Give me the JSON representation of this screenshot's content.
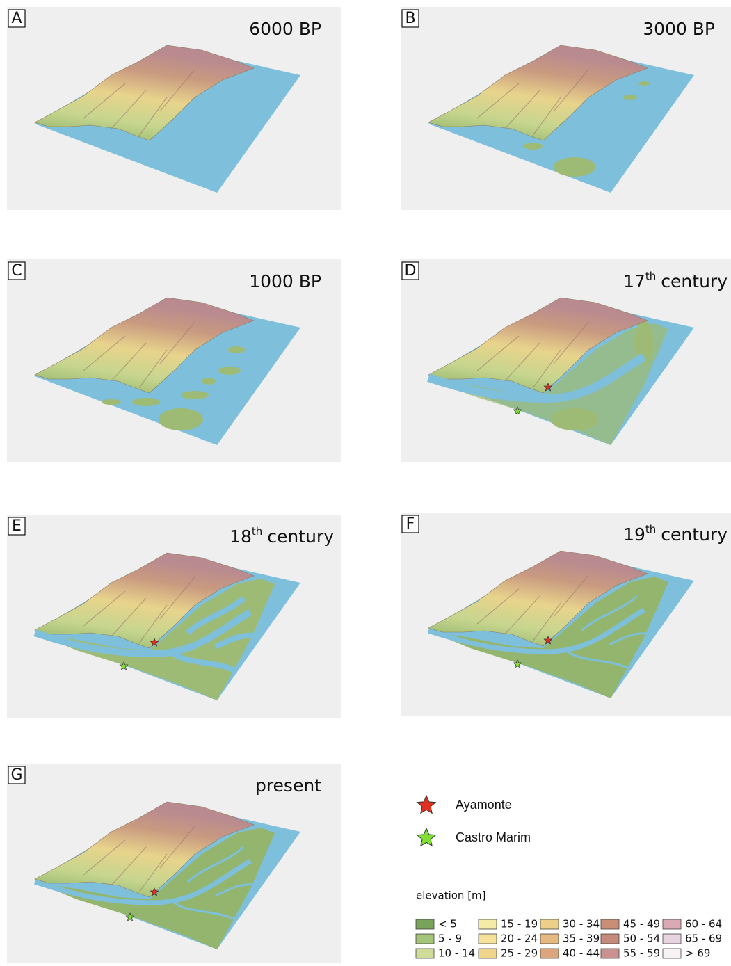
{
  "panels": [
    {
      "letter": "A",
      "title": "6000 BP"
    },
    {
      "letter": "B",
      "title": "3000 BP"
    },
    {
      "letter": "C",
      "title": "1000 BP"
    },
    {
      "letter": "D",
      "title": "17",
      "title_sup": "th",
      "title_rest": "century"
    },
    {
      "letter": "E",
      "title": "18",
      "title_sup": "th",
      "title_rest": "century"
    },
    {
      "letter": "F",
      "title": "19",
      "title_sup": "th",
      "title_rest": "century"
    },
    {
      "letter": "G",
      "title": "present"
    }
  ],
  "legend": {
    "places": [
      {
        "name": "Ayamonte",
        "color": "#e0301e"
      },
      {
        "name": "Castro Marim",
        "color": "#7ee032"
      }
    ],
    "elevation_title": "elevation [m]",
    "classes": [
      {
        "label": "< 5",
        "color": "#78a35a"
      },
      {
        "label": "5 - 9",
        "color": "#a4c47a"
      },
      {
        "label": "10 - 14",
        "color": "#cfdc98"
      },
      {
        "label": "15 - 19",
        "color": "#f3eba6"
      },
      {
        "label": "20 - 24",
        "color": "#f5e19a"
      },
      {
        "label": "25 - 29",
        "color": "#f2d58c"
      },
      {
        "label": "30 - 34",
        "color": "#eecf8a"
      },
      {
        "label": "35 - 39",
        "color": "#e6b882"
      },
      {
        "label": "40 - 44",
        "color": "#dca57b"
      },
      {
        "label": "45 - 49",
        "color": "#c98e76"
      },
      {
        "label": "50 - 54",
        "color": "#c48a7a"
      },
      {
        "label": "55 - 59",
        "color": "#c99290"
      },
      {
        "label": "60 - 64",
        "color": "#dba9b3"
      },
      {
        "label": "65 - 69",
        "color": "#ead3e0"
      },
      {
        "label": "> 69",
        "color": "#f8f1f6"
      }
    ]
  }
}
